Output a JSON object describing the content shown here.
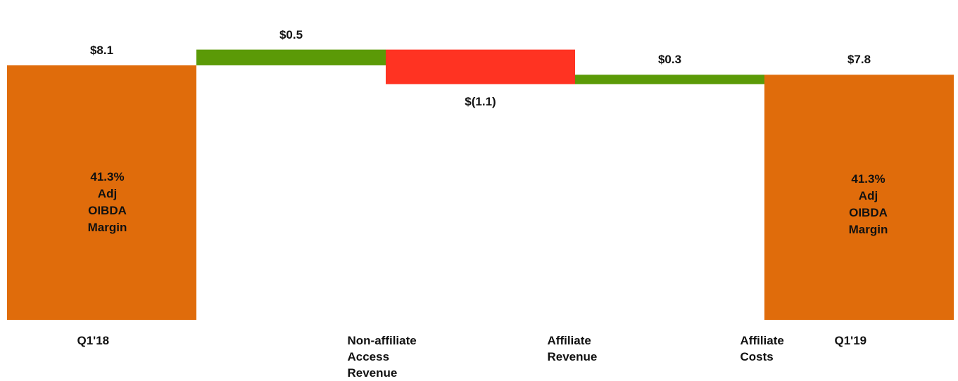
{
  "chart_data": {
    "type": "waterfall",
    "ylim": [
      0,
      9.0
    ],
    "steps": [
      {
        "category": [
          "Q1'18"
        ],
        "value": 8.1,
        "kind": "total",
        "label": "$8.1",
        "inner_text": [
          "41.3%",
          "Adj",
          "OIBDA",
          "Margin"
        ]
      },
      {
        "category": [
          "Non-affiliate",
          "Access",
          "Revenue"
        ],
        "value": 0.5,
        "kind": "increase",
        "label": "$0.5"
      },
      {
        "category": [
          "Affiliate",
          "Revenue"
        ],
        "value": -1.1,
        "kind": "decrease",
        "label": "$(1.1)"
      },
      {
        "category": [
          "Affiliate",
          "Costs"
        ],
        "value": 0.3,
        "kind": "increase",
        "label": "$0.3"
      },
      {
        "category": [
          "Q1'19"
        ],
        "value": 7.8,
        "kind": "total",
        "label": "$7.8",
        "inner_text": [
          "41.3%",
          "Adj",
          "OIBDA",
          "Margin"
        ]
      }
    ],
    "colors": {
      "total": "#e06c0b",
      "increase": "#5b9a07",
      "decrease": "#ff3322"
    }
  }
}
